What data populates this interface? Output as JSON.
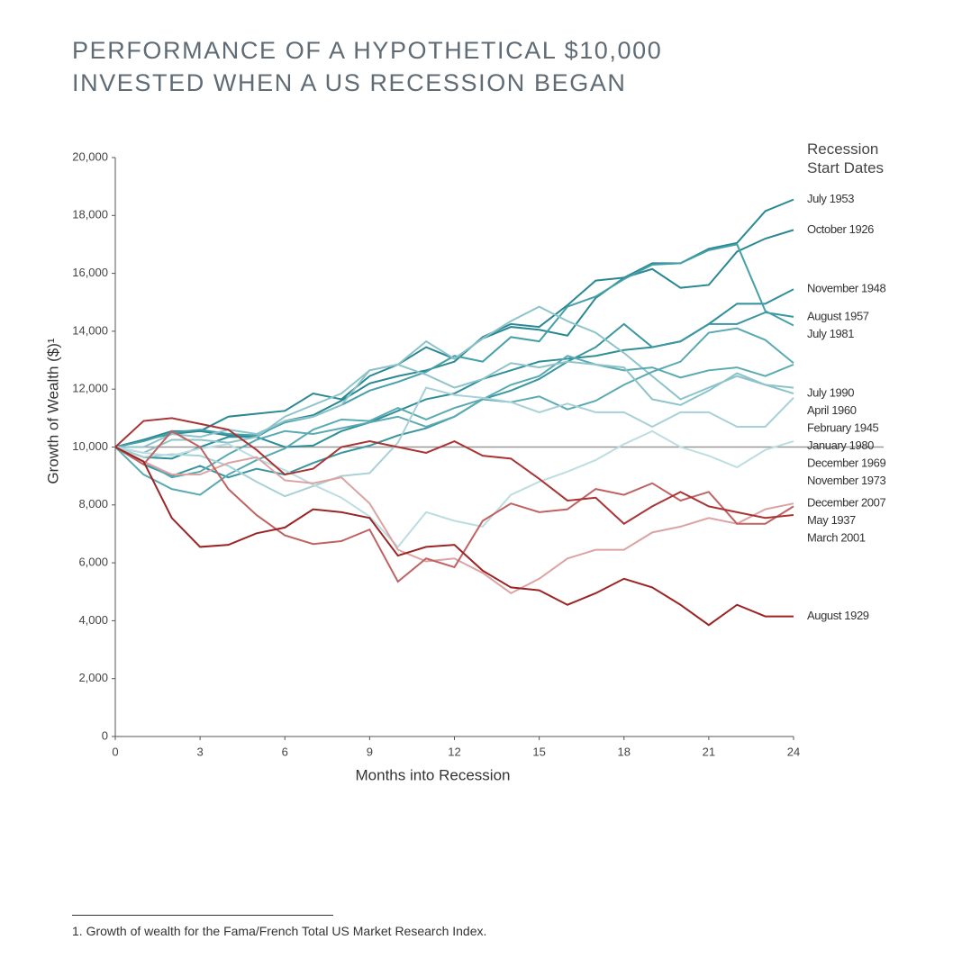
{
  "chart_data": {
    "type": "line",
    "title": [
      "PERFORMANCE OF A HYPOTHETICAL $10,000",
      "INVESTED WHEN A US RECESSION BEGAN"
    ],
    "x_label": "Months into Recession",
    "y_label": "Growth of Wealth ($)¹",
    "legend_title": [
      "Recession",
      "Start Dates"
    ],
    "legend_position": "right",
    "footnote": "1.  Growth of wealth for the Fama/French Total US Market Research Index.",
    "x": [
      0,
      1,
      2,
      3,
      4,
      5,
      6,
      7,
      8,
      9,
      10,
      11,
      12,
      13,
      14,
      15,
      16,
      17,
      18,
      19,
      20,
      21,
      22,
      23,
      24
    ],
    "xlim": [
      0,
      24
    ],
    "xticks": [
      0,
      3,
      6,
      9,
      12,
      15,
      18,
      21,
      24
    ],
    "ylim": [
      0,
      20000
    ],
    "yticks": [
      0,
      {
        "value": 2000,
        "label": "2,000"
      },
      {
        "value": 4000,
        "label": "4,000"
      },
      {
        "value": 6000,
        "label": "6,000"
      },
      {
        "value": 8000,
        "label": "8,000"
      },
      {
        "value": 10000,
        "label": "10,000"
      },
      {
        "value": 12000,
        "label": "12,000"
      },
      {
        "value": 14000,
        "label": "14,000"
      },
      {
        "value": 16000,
        "label": "16,000"
      },
      {
        "value": 18000,
        "label": "18,000"
      },
      {
        "value": 20000,
        "label": "20,000"
      }
    ],
    "reference_line": 10000,
    "series": [
      {
        "name": "July 1953",
        "color": "#2a8892",
        "values": [
          10000,
          10250,
          10550,
          10550,
          11050,
          11150,
          11250,
          11850,
          11650,
          12450,
          12850,
          13450,
          13050,
          13750,
          14150,
          14050,
          13850,
          15150,
          15850,
          16350,
          16350,
          16850,
          17050,
          18150,
          18550
        ]
      },
      {
        "name": "October 1926",
        "color": "#2a8892",
        "values": [
          10000,
          10250,
          10450,
          10550,
          10400,
          10350,
          10900,
          11100,
          11600,
          12200,
          12450,
          12650,
          12950,
          13800,
          14250,
          14150,
          14900,
          15750,
          15850,
          16150,
          15500,
          15600,
          16750,
          17200,
          17500
        ]
      },
      {
        "name": "November 1948",
        "color": "#2f8f99",
        "values": [
          10000,
          9650,
          9600,
          10000,
          10350,
          10350,
          10000,
          10050,
          10550,
          10850,
          11250,
          11650,
          11850,
          12350,
          12650,
          12950,
          13050,
          13150,
          13350,
          13450,
          13650,
          14250,
          14950,
          14950,
          15450
        ]
      },
      {
        "name": "August 1957",
        "color": "#3a969f",
        "values": [
          10000,
          9400,
          9000,
          9350,
          8950,
          9250,
          9050,
          9450,
          9800,
          10050,
          10400,
          10650,
          11050,
          11650,
          11950,
          12350,
          12950,
          13450,
          14250,
          13450,
          13650,
          14250,
          14250,
          14650,
          14500
        ]
      },
      {
        "name": "July 1981",
        "color": "#46a0a8",
        "values": [
          10000,
          10200,
          10500,
          10600,
          10450,
          10400,
          10850,
          11050,
          11450,
          11950,
          12250,
          12600,
          13150,
          12950,
          13800,
          13650,
          14850,
          15200,
          15800,
          16300,
          16350,
          16800,
          17000,
          14700,
          14200
        ]
      },
      {
        "name": "July 1990",
        "color": "#8cc4ca",
        "values": [
          10000,
          9800,
          10250,
          10250,
          10150,
          10350,
          11050,
          11450,
          11850,
          12650,
          12850,
          13650,
          13050,
          13750,
          14350,
          14850,
          14350,
          13950,
          13250,
          12450,
          11650,
          12050,
          12450,
          12150,
          11850
        ]
      },
      {
        "name": "April 1960",
        "color": "#5aaab1",
        "values": [
          10000,
          9500,
          8950,
          9150,
          9750,
          10250,
          10550,
          10450,
          10650,
          10850,
          11050,
          10700,
          11050,
          11650,
          12150,
          12450,
          13150,
          12850,
          12650,
          12750,
          12400,
          12650,
          12750,
          12450,
          12850
        ]
      },
      {
        "name": "February 1945",
        "color": "#5aaab1",
        "values": [
          10000,
          9050,
          8550,
          8350,
          9050,
          9550,
          9950,
          10600,
          10950,
          10900,
          11350,
          10950,
          11350,
          11650,
          11550,
          11750,
          11300,
          11600,
          12150,
          12600,
          12950,
          13950,
          14100,
          13700,
          12900
        ]
      },
      {
        "name": "January 1980",
        "color": "#8cc4ca",
        "values": [
          10000,
          10000,
          10450,
          10350,
          10600,
          10450,
          10900,
          11050,
          11450,
          12650,
          12850,
          12500,
          12050,
          12350,
          12900,
          12750,
          12950,
          12850,
          12750,
          11650,
          11450,
          11950,
          12550,
          12150,
          12050
        ]
      },
      {
        "name": "December 1969",
        "color": "#a7d1d6",
        "values": [
          10000,
          9650,
          9750,
          9700,
          9350,
          8800,
          8300,
          8650,
          9000,
          9100,
          10150,
          12050,
          11800,
          11700,
          11550,
          11200,
          11500,
          11200,
          11200,
          10700,
          11200,
          11200,
          10700,
          10700,
          11700
        ]
      },
      {
        "name": "November 1973",
        "color": "#bcdde1",
        "values": [
          10000,
          9800,
          9700,
          9950,
          10100,
          9600,
          9200,
          8700,
          8250,
          7600,
          6550,
          7750,
          7450,
          7250,
          8350,
          8800,
          9150,
          9550,
          10100,
          10550,
          10000,
          9700,
          9300,
          9900,
          10200
        ]
      },
      {
        "name": "December 2007",
        "color": "#dca3a3",
        "values": [
          10000,
          9500,
          9050,
          9050,
          9450,
          9650,
          8850,
          8750,
          8950,
          8050,
          6450,
          6050,
          6150,
          5650,
          4950,
          5450,
          6150,
          6450,
          6450,
          7050,
          7250,
          7550,
          7350,
          7850,
          8050
        ]
      },
      {
        "name": "May 1937",
        "color": "#c06262",
        "values": [
          10000,
          9400,
          10550,
          10000,
          8550,
          7650,
          6950,
          6650,
          6750,
          7150,
          5350,
          6150,
          5850,
          7450,
          8050,
          7750,
          7850,
          8550,
          8350,
          8750,
          8150,
          8450,
          7350,
          7350,
          7950
        ]
      },
      {
        "name": "March 2001",
        "color": "#a83434",
        "values": [
          10000,
          10900,
          11000,
          10800,
          10600,
          9900,
          9050,
          9250,
          10000,
          10200,
          10000,
          9800,
          10200,
          9700,
          9600,
          8900,
          8150,
          8250,
          7350,
          7950,
          8450,
          7950,
          7750,
          7550,
          7650
        ]
      },
      {
        "name": "August 1929",
        "color": "#9b2424",
        "values": [
          10000,
          9500,
          7550,
          6550,
          6620,
          7020,
          7220,
          7850,
          7750,
          7550,
          6250,
          6550,
          6620,
          5730,
          5150,
          5050,
          4550,
          4950,
          5450,
          5150,
          4550,
          3850,
          4550,
          4150,
          4150
        ]
      }
    ]
  }
}
